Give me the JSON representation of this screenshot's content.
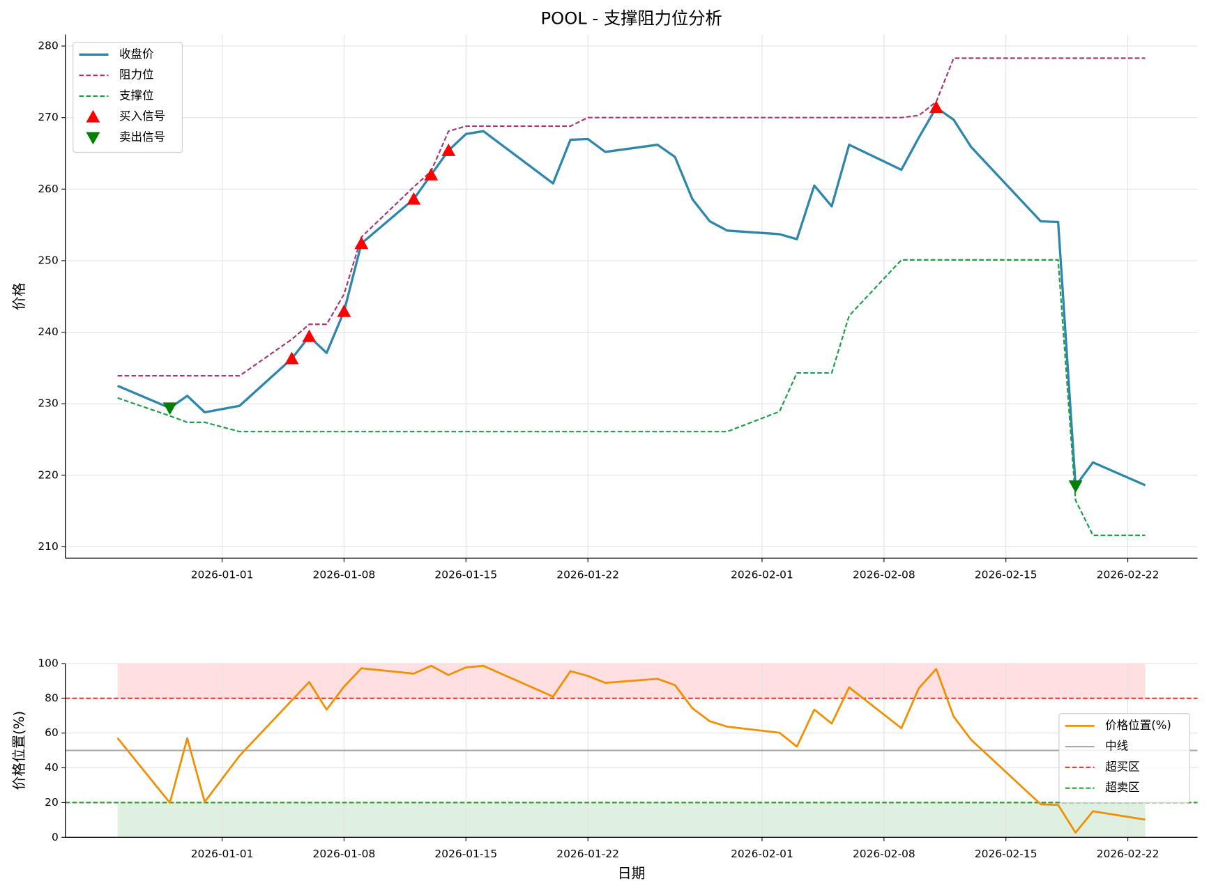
{
  "chart_data": [
    {
      "type": "line",
      "title": "POOL - 支撑阻力位分析",
      "ylabel": "价格",
      "x": [
        "2025-12-26",
        "2025-12-29",
        "2025-12-30",
        "2025-12-31",
        "2026-01-02",
        "2026-01-05",
        "2026-01-06",
        "2026-01-07",
        "2026-01-08",
        "2026-01-09",
        "2026-01-12",
        "2026-01-13",
        "2026-01-14",
        "2026-01-15",
        "2026-01-16",
        "2026-01-20",
        "2026-01-21",
        "2026-01-22",
        "2026-01-23",
        "2026-01-26",
        "2026-01-27",
        "2026-01-28",
        "2026-01-29",
        "2026-01-30",
        "2026-02-02",
        "2026-02-03",
        "2026-02-04",
        "2026-02-05",
        "2026-02-06",
        "2026-02-09",
        "2026-02-10",
        "2026-02-11",
        "2026-02-12",
        "2026-02-13",
        "2026-02-17",
        "2026-02-18",
        "2026-02-19",
        "2026-02-20",
        "2026-02-23"
      ],
      "series": [
        {
          "name": "收盘价",
          "color": "#2e86ab",
          "width": 3,
          "values": [
            232.5,
            229.4,
            231.1,
            228.8,
            229.7,
            236.3,
            239.4,
            237.1,
            242.9,
            252.4,
            258.6,
            262.0,
            265.4,
            267.7,
            268.1,
            260.8,
            266.9,
            267.0,
            265.2,
            266.2,
            264.5,
            258.6,
            255.5,
            254.2,
            253.7,
            253.0,
            260.5,
            257.6,
            266.2,
            262.7,
            267.2,
            271.4,
            269.7,
            265.9,
            255.5,
            255.4,
            218.5,
            221.8,
            218.6
          ]
        },
        {
          "name": "阻力位",
          "color": "#a23b72",
          "width": 2,
          "dash": "dashed",
          "values": [
            233.9,
            233.9,
            233.9,
            233.9,
            233.9,
            239.0,
            241.1,
            241.1,
            245.3,
            253.3,
            260.3,
            262.5,
            268.1,
            268.8,
            268.8,
            268.8,
            268.8,
            270.0,
            270.0,
            270.0,
            270.0,
            270.0,
            270.0,
            270.0,
            270.0,
            270.0,
            270.0,
            270.0,
            270.0,
            270.0,
            270.3,
            272.2,
            278.3,
            278.3,
            278.3,
            278.3,
            278.3,
            278.3,
            278.3
          ]
        },
        {
          "name": "支撑位",
          "color": "#1f9e4a",
          "width": 2,
          "dash": "dashed",
          "values": [
            230.8,
            228.3,
            227.4,
            227.4,
            226.1,
            226.1,
            226.1,
            226.1,
            226.1,
            226.1,
            226.1,
            226.1,
            226.1,
            226.1,
            226.1,
            226.1,
            226.1,
            226.1,
            226.1,
            226.1,
            226.1,
            226.1,
            226.1,
            226.1,
            228.9,
            234.3,
            234.3,
            234.3,
            242.3,
            250.1,
            250.1,
            250.1,
            250.1,
            250.1,
            250.1,
            250.1,
            216.5,
            211.6,
            211.6
          ]
        },
        {
          "name": "买入信号",
          "color": "#ff0000",
          "marker": "triangle-up",
          "x": [
            "2026-01-05",
            "2026-01-06",
            "2026-01-08",
            "2026-01-09",
            "2026-01-12",
            "2026-01-13",
            "2026-01-14",
            "2026-02-11"
          ],
          "values": [
            236.3,
            239.4,
            242.9,
            252.4,
            258.6,
            262.0,
            265.4,
            271.4
          ]
        },
        {
          "name": "卖出信号",
          "color": "#008000",
          "marker": "triangle-down",
          "x": [
            "2025-12-29",
            "2026-02-19"
          ],
          "values": [
            229.4,
            218.5
          ]
        }
      ],
      "xlim": [
        "2025-12-23",
        "2026-02-26"
      ],
      "xticks": [
        "2026-01-01",
        "2026-01-08",
        "2026-01-15",
        "2026-01-22",
        "2026-02-01",
        "2026-02-08",
        "2026-02-15",
        "2026-02-22"
      ],
      "ylim": [
        208.4,
        281.6
      ],
      "yticks": [
        210,
        220,
        230,
        240,
        250,
        260,
        270,
        280
      ],
      "grid": true,
      "legend": "upper left"
    },
    {
      "type": "line",
      "ylabel": "价格位置(%)",
      "xlabel": "日期",
      "x": [
        "2025-12-26",
        "2025-12-29",
        "2025-12-30",
        "2025-12-31",
        "2026-01-02",
        "2026-01-05",
        "2026-01-06",
        "2026-01-07",
        "2026-01-08",
        "2026-01-09",
        "2026-01-12",
        "2026-01-13",
        "2026-01-14",
        "2026-01-15",
        "2026-01-16",
        "2026-01-20",
        "2026-01-21",
        "2026-01-22",
        "2026-01-23",
        "2026-01-26",
        "2026-01-27",
        "2026-01-28",
        "2026-01-29",
        "2026-01-30",
        "2026-02-02",
        "2026-02-03",
        "2026-02-04",
        "2026-02-05",
        "2026-02-06",
        "2026-02-09",
        "2026-02-10",
        "2026-02-11",
        "2026-02-12",
        "2026-02-13",
        "2026-02-17",
        "2026-02-18",
        "2026-02-19",
        "2026-02-20",
        "2026-02-23"
      ],
      "series": [
        {
          "name": "价格位置(%)",
          "color": "#f18f01",
          "width": 2.5,
          "values": [
            57.1,
            19.9,
            57.0,
            20.4,
            46.9,
            78.8,
            89.4,
            73.5,
            86.7,
            97.3,
            94.2,
            98.7,
            93.4,
            97.8,
            98.7,
            81.0,
            95.6,
            92.9,
            88.9,
            91.2,
            87.6,
            74.3,
            66.8,
            63.7,
            60.2,
            52.2,
            73.5,
            65.5,
            86.3,
            62.8,
            85.8,
            96.9,
            69.5,
            56.2,
            19.0,
            18.6,
            2.7,
            15.0,
            10.2
          ]
        }
      ],
      "hlines": [
        {
          "name": "中线",
          "value": 50,
          "color": "#aaaaaa"
        },
        {
          "name": "超买区",
          "value": 80,
          "color": "#ff3333",
          "dash": "dashed",
          "zone": "above",
          "zone_color": "#ffdfe0"
        },
        {
          "name": "超卖区",
          "value": 20,
          "color": "#2ca02c",
          "dash": "dashed",
          "zone": "below",
          "zone_color": "#e0f0e0"
        }
      ],
      "xlim": [
        "2025-12-23",
        "2026-02-26"
      ],
      "xticks": [
        "2026-01-01",
        "2026-01-08",
        "2026-01-15",
        "2026-01-22",
        "2026-02-01",
        "2026-02-08",
        "2026-02-15",
        "2026-02-22"
      ],
      "ylim": [
        0,
        100
      ],
      "yticks": [
        0,
        20,
        40,
        60,
        80,
        100
      ],
      "grid": true,
      "legend": "center right"
    }
  ]
}
